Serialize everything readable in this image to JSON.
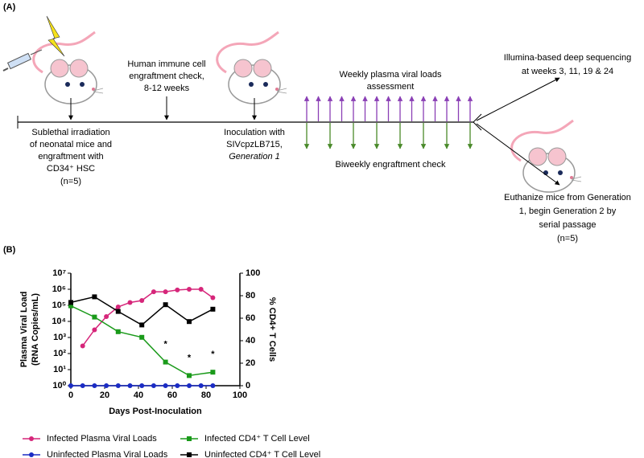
{
  "panel_a": {
    "label": "(A)",
    "irradiation": [
      "Sublethal irradiation",
      "of neonatal mice and",
      "engraftment with",
      "CD34⁺ HSC",
      "(n=5)"
    ],
    "engraftment_check": [
      "Human immune cell",
      "engraftment check,",
      "8-12 weeks"
    ],
    "inoculation": [
      "Inoculation with",
      "SIVcpzLB715,",
      "Generation 1"
    ],
    "weekly": [
      "Weekly plasma viral loads",
      "assessment"
    ],
    "biweekly": "Biweekly engraftment check",
    "sequencing": [
      "Illumina-based deep sequencing",
      "at weeks 3, 11, 19 & 24"
    ],
    "euthanize": [
      "Euthanize mice from Generation",
      "1, begin Generation 2 by",
      "serial passage",
      "(n=5)"
    ]
  },
  "chart_data": {
    "type": "line",
    "label": "(B)",
    "xlabel": "Days Post-Inoculation",
    "ylabel": [
      "Plasma Viral Load",
      "(RNA Copies/mL)"
    ],
    "y2label": "% CD4+ T Cells",
    "xlim": [
      0,
      100
    ],
    "xticks": [
      0,
      20,
      40,
      60,
      80,
      100
    ],
    "ylog": true,
    "ylim": [
      1,
      10000000
    ],
    "yticks": [
      {
        "value": 1,
        "label": "10⁰"
      },
      {
        "value": 10,
        "label": "10¹"
      },
      {
        "value": 100,
        "label": "10²"
      },
      {
        "value": 1000,
        "label": "10³"
      },
      {
        "value": 10000,
        "label": "10⁴"
      },
      {
        "value": 100000,
        "label": "10⁵"
      },
      {
        "value": 1000000,
        "label": "10⁶"
      },
      {
        "value": 10000000,
        "label": "10⁷"
      }
    ],
    "y2lim": [
      0,
      100
    ],
    "y2ticks": [
      0,
      20,
      40,
      60,
      80,
      100
    ],
    "series": [
      {
        "name": "Infected Plasma Viral Loads",
        "color": "#d6267a",
        "marker": "circle",
        "x": [
          7,
          14,
          21,
          28,
          35,
          42,
          49,
          56,
          63,
          70,
          77,
          84
        ],
        "values": [
          300,
          3000,
          20000,
          80000,
          150000,
          200000,
          700000,
          700000,
          900000,
          1000000,
          1000000,
          300000
        ]
      },
      {
        "name": "Uninfected Plasma Viral Loads",
        "color": "#1a2bc4",
        "marker": "circle",
        "x": [
          0,
          7,
          14,
          21,
          28,
          35,
          42,
          49,
          56,
          63,
          70,
          77,
          84
        ],
        "values": [
          1,
          1,
          1,
          1,
          1,
          1,
          1,
          1,
          1,
          1,
          1,
          1,
          1
        ]
      },
      {
        "name": "Infected CD4⁺ T Cell Level",
        "color": "#1a9a1a",
        "marker": "square",
        "axis": "y2",
        "x": [
          0,
          14,
          28,
          42,
          56,
          70,
          84
        ],
        "values": [
          71,
          61,
          48,
          43,
          21,
          9,
          12
        ]
      },
      {
        "name": "Uninfected CD4⁺ T Cell Level",
        "color": "#000000",
        "marker": "square",
        "axis": "y2",
        "x": [
          0,
          14,
          28,
          42,
          56,
          70,
          84
        ],
        "values": [
          74,
          79,
          66,
          54,
          72,
          57,
          68
        ]
      }
    ],
    "annotations": [
      {
        "text": "*",
        "x": 56
      },
      {
        "text": "*",
        "x": 70
      },
      {
        "text": "*",
        "x": 84
      }
    ]
  }
}
